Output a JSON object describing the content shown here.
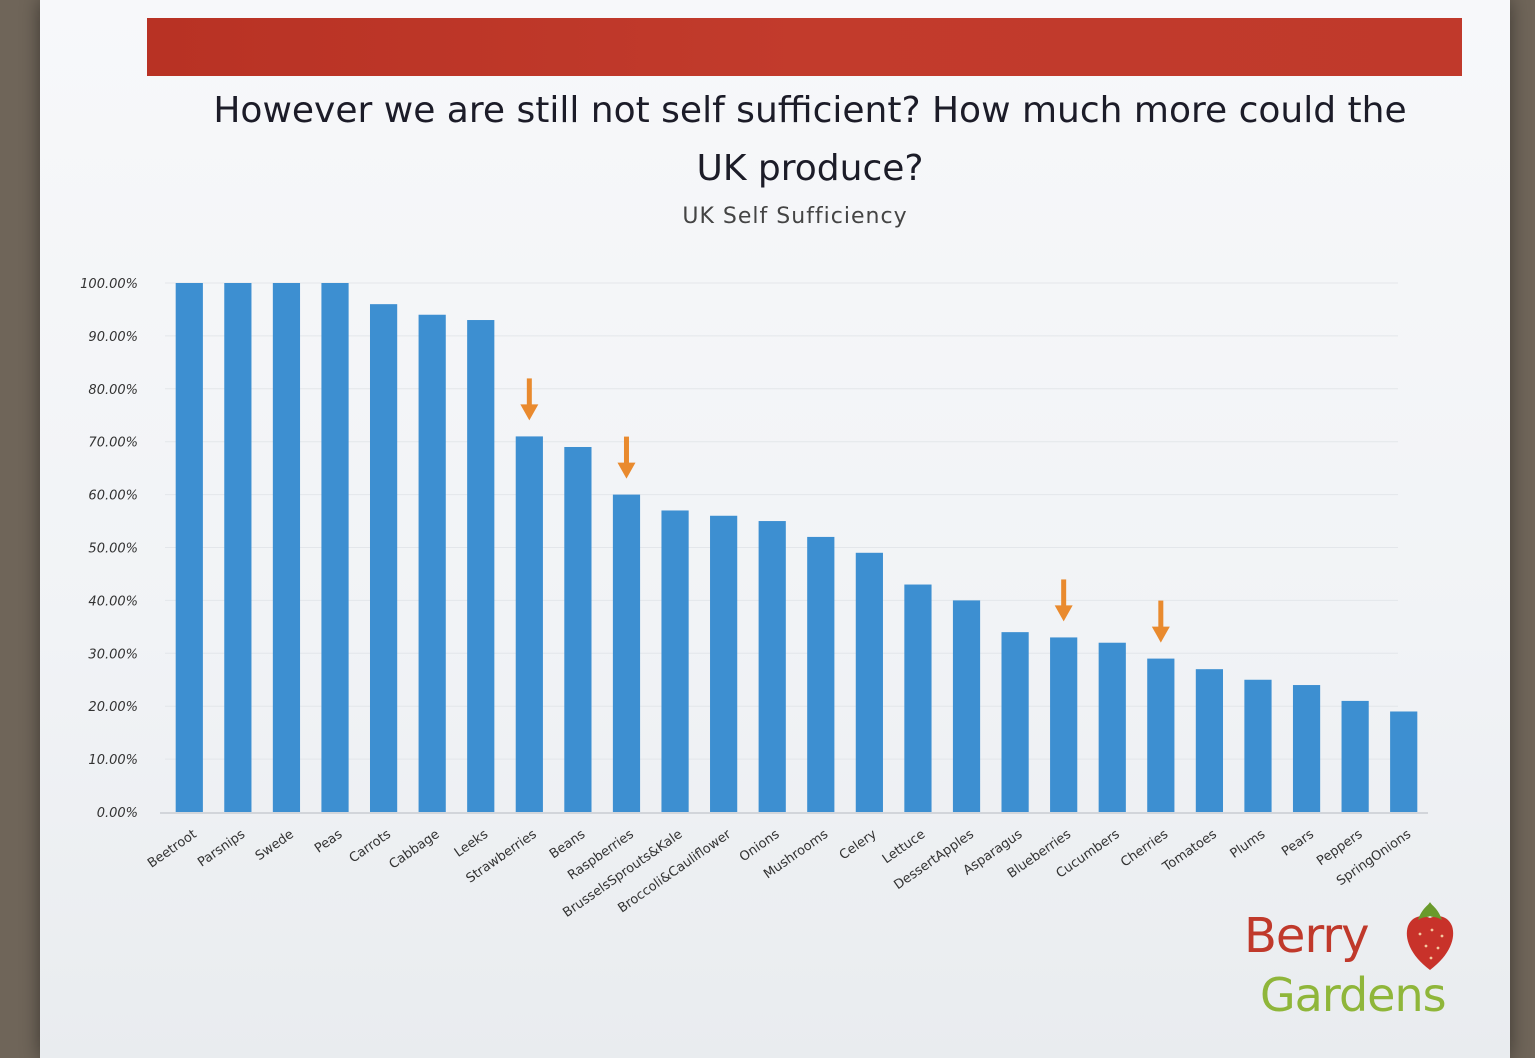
{
  "header": {
    "title": "However we are still not self sufficient? How much more could the UK produce?"
  },
  "logo": {
    "line1": "Berry",
    "line2": "Gardens",
    "icon": "strawberry-icon"
  },
  "colors": {
    "banner": "#c0392b",
    "bar": "#3d8fd1",
    "arrow": "#e98a2e"
  },
  "chart_data": {
    "type": "bar",
    "title": "UK Self Sufficiency",
    "xlabel": "",
    "ylabel": "",
    "ylim": [
      0,
      1
    ],
    "grid": true,
    "legend": "none",
    "yticks": [
      "0.00%",
      "10.00%",
      "20.00%",
      "30.00%",
      "40.00%",
      "50.00%",
      "60.00%",
      "70.00%",
      "80.00%",
      "90.00%",
      "100.00%"
    ],
    "categories": [
      "Beetroot",
      "Parsnips",
      "Swede",
      "Peas",
      "Carrots",
      "Cabbage",
      "Leeks",
      "Strawberries",
      "Beans",
      "Raspberries",
      "BrusselsSprouts&Kale",
      "Broccoli&Cauliflower",
      "Onions",
      "Mushrooms",
      "Celery",
      "Lettuce",
      "DessertApples",
      "Asparagus",
      "Blueberries",
      "Cucumbers",
      "Cherries",
      "Tomatoes",
      "Plums",
      "Pears",
      "Peppers",
      "SpringOnions"
    ],
    "values": [
      1.0,
      1.0,
      1.0,
      1.0,
      0.96,
      0.94,
      0.93,
      0.71,
      0.69,
      0.6,
      0.57,
      0.56,
      0.55,
      0.52,
      0.49,
      0.43,
      0.4,
      0.34,
      0.33,
      0.32,
      0.29,
      0.27,
      0.25,
      0.24,
      0.21,
      0.19
    ],
    "highlighted": [
      "Strawberries",
      "Raspberries",
      "Blueberries",
      "Cherries"
    ]
  }
}
